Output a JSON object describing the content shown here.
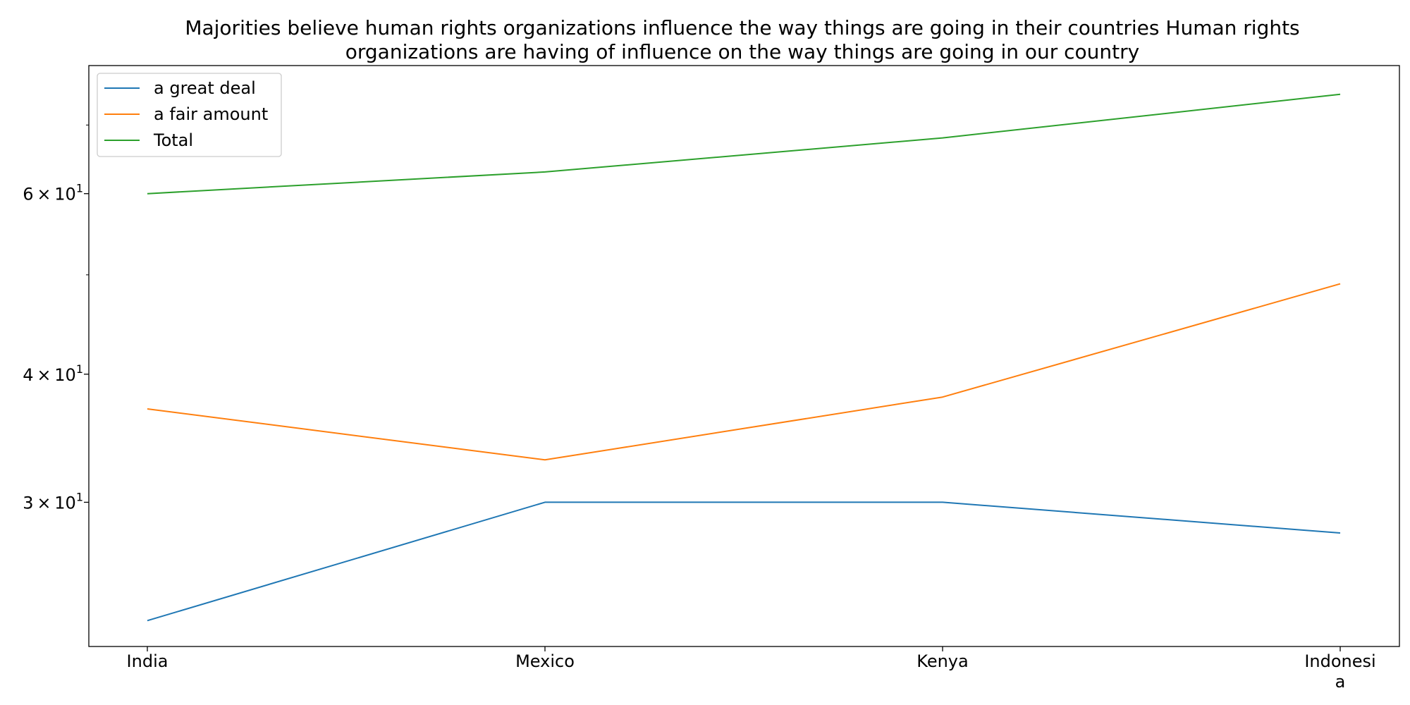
{
  "chart_data": {
    "type": "line",
    "title_lines": [
      "Majorities believe human rights organizations influence the way things are going in their countries Human rights",
      "organizations are having of influence on the way things are going in our country"
    ],
    "xlabel": "",
    "ylabel": "",
    "y_scale": "log",
    "ylim": [
      21.7,
      80
    ],
    "categories": [
      "India",
      "Mexico",
      "Kenya",
      "Indonesia"
    ],
    "category_label_lines": [
      [
        "India"
      ],
      [
        "Mexico"
      ],
      [
        "Kenya"
      ],
      [
        "Indonesi",
        "a"
      ]
    ],
    "y_major_ticks": [
      {
        "value": 30,
        "base": "3",
        "exp": "1"
      },
      {
        "value": 40,
        "base": "4",
        "exp": "1"
      },
      {
        "value": 60,
        "base": "6",
        "exp": "1"
      }
    ],
    "y_minor_ticks": [
      50,
      70
    ],
    "grid": false,
    "legend_position": "top-left",
    "series": [
      {
        "name": "a great deal",
        "color": "#1f77b4",
        "values": [
          23,
          30,
          30,
          28
        ]
      },
      {
        "name": "a fair amount",
        "color": "#ff7f0e",
        "values": [
          37,
          33,
          38,
          49
        ]
      },
      {
        "name": "Total",
        "color": "#2ca02c",
        "values": [
          60,
          63,
          68,
          75
        ]
      }
    ]
  }
}
